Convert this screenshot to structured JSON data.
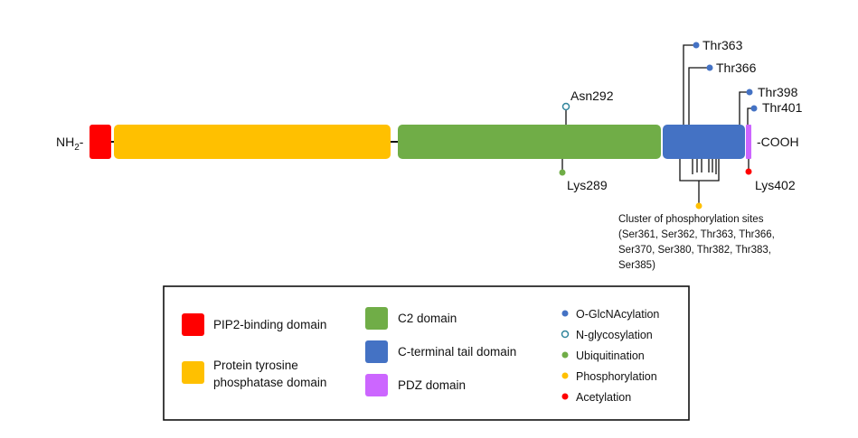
{
  "protein": {
    "n_terminus": "NH",
    "n_terminus_sub": "2",
    "n_terminus_suffix": "-",
    "c_terminus": "-COOH"
  },
  "domains": [
    {
      "name": "PIP2-binding domain",
      "color": "#ff0000"
    },
    {
      "name": "Protein tyrosine phosphatase domain",
      "color": "#ffc000"
    },
    {
      "name": "C2 domain",
      "color": "#70ad47"
    },
    {
      "name": "C-terminal tail domain",
      "color": "#4472c4"
    },
    {
      "name": "PDZ domain",
      "color": "#cc66ff"
    }
  ],
  "sites": {
    "thr363": "Thr363",
    "thr366": "Thr366",
    "thr398": "Thr398",
    "thr401": "Thr401",
    "asn292": "Asn292",
    "lys289": "Lys289",
    "lys402": "Lys402"
  },
  "cluster_note": [
    "Cluster of phosphorylation sites",
    "(Ser361, Ser362, Thr363, Thr366,",
    "Ser370, Ser380, Thr382, Thr383,",
    "Ser385)"
  ],
  "legend": {
    "domains": [
      {
        "label": [
          "PIP2-binding domain"
        ],
        "color": "#ff0000"
      },
      {
        "label": [
          "Protein tyrosine",
          "phosphatase domain"
        ],
        "color": "#ffc000"
      },
      {
        "label": [
          "C2 domain"
        ],
        "color": "#70ad47"
      },
      {
        "label": [
          "C-terminal tail domain"
        ],
        "color": "#4472c4"
      },
      {
        "label": [
          "PDZ domain"
        ],
        "color": "#cc66ff"
      }
    ],
    "modifications": [
      {
        "label": "O-GlcNAcylation",
        "color": "#4472c4",
        "hollow": false
      },
      {
        "label": "N-glycosylation",
        "color": "#31859c",
        "hollow": true
      },
      {
        "label": "Ubiquitination",
        "color": "#70ad47",
        "hollow": false
      },
      {
        "label": "Phosphorylation",
        "color": "#ffc000",
        "hollow": false
      },
      {
        "label": "Acetylation",
        "color": "#ff0000",
        "hollow": false
      }
    ]
  }
}
